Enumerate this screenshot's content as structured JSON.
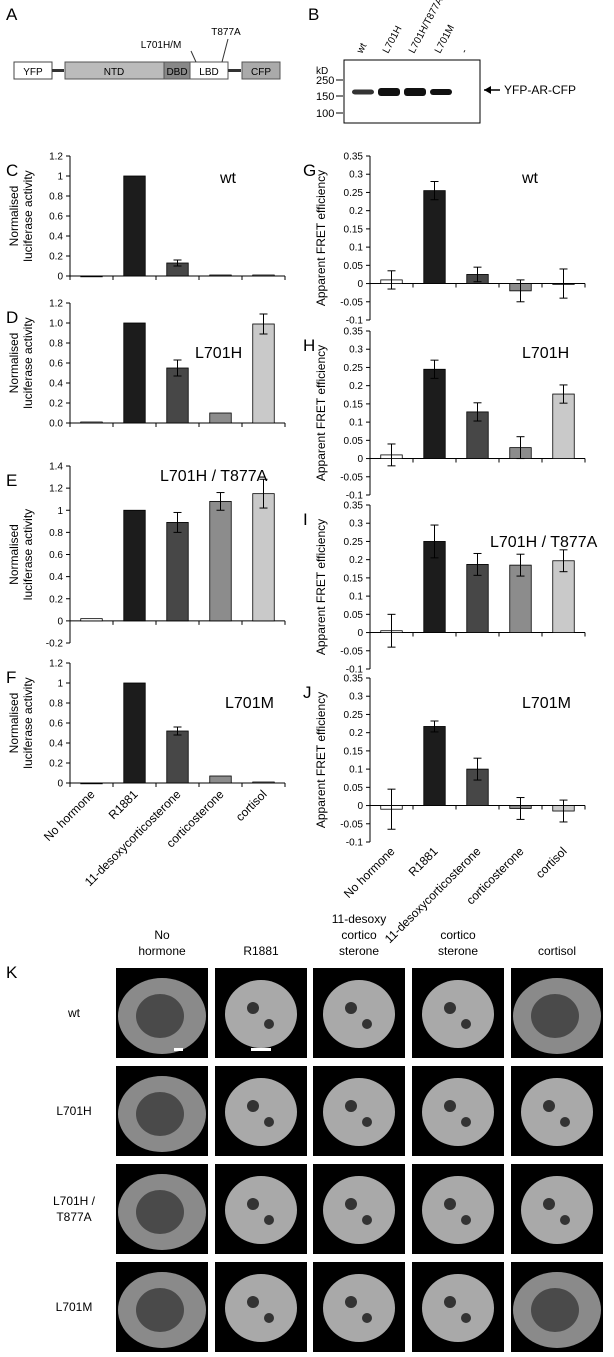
{
  "panel_letters": [
    "A",
    "B",
    "C",
    "D",
    "E",
    "F",
    "G",
    "H",
    "I",
    "J",
    "K"
  ],
  "construct": {
    "domains": [
      "YFP",
      "NTD",
      "DBD",
      "LBD",
      "CFP"
    ],
    "mutation_labels": [
      "L701H/M",
      "T877A"
    ]
  },
  "blot": {
    "lanes": [
      "wt",
      "L701H",
      "L701H/T877A",
      "L701M",
      "-"
    ],
    "kd_label": "kD",
    "mw_markers": [
      "250",
      "150",
      "100"
    ],
    "band_label": "YFP-AR-CFP"
  },
  "colors": {
    "bars": [
      "#ffffff",
      "#1c1c1c",
      "#474747",
      "#8c8c8c",
      "#c9c9c9"
    ]
  },
  "chart_data": [
    {
      "type": "bar",
      "panel": "C",
      "title": "wt",
      "ylabel": "Normalised luciferase activity",
      "categories": [
        "No hormone",
        "R1881",
        "11-desoxycorticosterone",
        "corticosterone",
        "cortisol"
      ],
      "ylim": [
        0,
        1.2
      ],
      "yticks": [
        "0",
        "0.2",
        "0.4",
        "0.6",
        "0.8",
        "1",
        "1.2"
      ],
      "values": [
        0.0,
        1.0,
        0.13,
        0.01,
        0.01
      ],
      "errors": [
        0,
        0,
        0.03,
        0,
        0
      ]
    },
    {
      "type": "bar",
      "panel": "D",
      "title": "L701H",
      "ylabel": "Normalised luciferase activity",
      "categories": [
        "No hormone",
        "R1881",
        "11-desoxycorticosterone",
        "corticosterone",
        "cortisol"
      ],
      "ylim": [
        0,
        1.2
      ],
      "yticks": [
        "0.0",
        "0.2",
        "0.4",
        "0.6",
        "0.8",
        "1.0",
        "1.2"
      ],
      "values": [
        0.01,
        1.0,
        0.55,
        0.1,
        0.99
      ],
      "errors": [
        0,
        0,
        0.08,
        0,
        0.1
      ]
    },
    {
      "type": "bar",
      "panel": "E",
      "title": "L701H / T877A",
      "ylabel": "Normalised luciferase activity",
      "categories": [
        "No hormone",
        "R1881",
        "11-desoxycorticosterone",
        "corticosterone",
        "cortisol"
      ],
      "ylim": [
        -0.2,
        1.4
      ],
      "yticks": [
        "-0.2",
        "0",
        "0.2",
        "0.4",
        "0.6",
        "0.8",
        "1",
        "1.2",
        "1.4"
      ],
      "values": [
        0.02,
        1.0,
        0.89,
        1.08,
        1.15
      ],
      "errors": [
        0,
        0,
        0.09,
        0.08,
        0.13
      ]
    },
    {
      "type": "bar",
      "panel": "F",
      "title": "L701M",
      "ylabel": "Normalised luciferase activity",
      "categories": [
        "No hormone",
        "R1881",
        "11-desoxycorticosterone",
        "corticosterone",
        "cortisol"
      ],
      "ylim": [
        0,
        1.2
      ],
      "yticks": [
        "0",
        "0.2",
        "0.4",
        "0.6",
        "0.8",
        "1",
        "1.2"
      ],
      "values": [
        0.0,
        1.0,
        0.52,
        0.07,
        0.01
      ],
      "errors": [
        0,
        0,
        0.04,
        0,
        0
      ]
    },
    {
      "type": "bar",
      "panel": "G",
      "title": "wt",
      "ylabel": "Apparent FRET efficiency",
      "categories": [
        "No hormone",
        "R1881",
        "11-desoxycorticosterone",
        "corticosterone",
        "cortisol"
      ],
      "ylim": [
        -0.1,
        0.35
      ],
      "yticks": [
        "-0.1",
        "-0.05",
        "0",
        "0.05",
        "0.1",
        "0.15",
        "0.2",
        "0.25",
        "0.3",
        "0.35"
      ],
      "values": [
        0.01,
        0.255,
        0.025,
        -0.02,
        0.0
      ],
      "errors": [
        0.025,
        0.025,
        0.02,
        0.03,
        0.04
      ]
    },
    {
      "type": "bar",
      "panel": "H",
      "title": "L701H",
      "ylabel": "Apparent FRET efficiency",
      "categories": [
        "No hormone",
        "R1881",
        "11-desoxycorticosterone",
        "corticosterone",
        "cortisol"
      ],
      "ylim": [
        -0.1,
        0.35
      ],
      "yticks": [
        "-0.1",
        "-0.05",
        "0",
        "0.05",
        "0.1",
        "0.15",
        "0.2",
        "0.25",
        "0.3",
        "0.35"
      ],
      "values": [
        0.01,
        0.245,
        0.128,
        0.03,
        0.177
      ],
      "errors": [
        0.03,
        0.025,
        0.025,
        0.03,
        0.025
      ]
    },
    {
      "type": "bar",
      "panel": "I",
      "title": "L701H / T877A",
      "ylabel": "Apparent FRET efficiency",
      "categories": [
        "No hormone",
        "R1881",
        "11-desoxycorticosterone",
        "corticosterone",
        "cortisol"
      ],
      "ylim": [
        -0.1,
        0.35
      ],
      "yticks": [
        "-0.1",
        "-0.05",
        "0",
        "0.05",
        "0.1",
        "0.15",
        "0.2",
        "0.25",
        "0.3",
        "0.35"
      ],
      "values": [
        0.005,
        0.25,
        0.187,
        0.185,
        0.197
      ],
      "errors": [
        0.045,
        0.045,
        0.03,
        0.03,
        0.03
      ]
    },
    {
      "type": "bar",
      "panel": "J",
      "title": "L701M",
      "ylabel": "Apparent FRET efficiency",
      "categories": [
        "No hormone",
        "R1881",
        "11-desoxycorticosterone",
        "corticosterone",
        "cortisol"
      ],
      "ylim": [
        -0.1,
        0.35
      ],
      "yticks": [
        "-0.1",
        "-0.05",
        "0",
        "0.05",
        "0.1",
        "0.15",
        "0.2",
        "0.25",
        "0.3",
        "0.35"
      ],
      "values": [
        -0.01,
        0.217,
        0.1,
        -0.008,
        -0.015
      ],
      "errors": [
        0.055,
        0.015,
        0.03,
        0.03,
        0.03
      ]
    }
  ],
  "micrographs": {
    "columns": [
      [
        "No",
        "hormone"
      ],
      [
        "R1881"
      ],
      [
        "11-desoxy",
        "cortico",
        "sterone"
      ],
      [
        "cortico",
        "sterone"
      ],
      [
        "cortisol"
      ]
    ],
    "rows": [
      [
        "wt"
      ],
      [
        "L701H"
      ],
      [
        "L701H /",
        "T877A"
      ],
      [
        "L701M"
      ]
    ]
  }
}
